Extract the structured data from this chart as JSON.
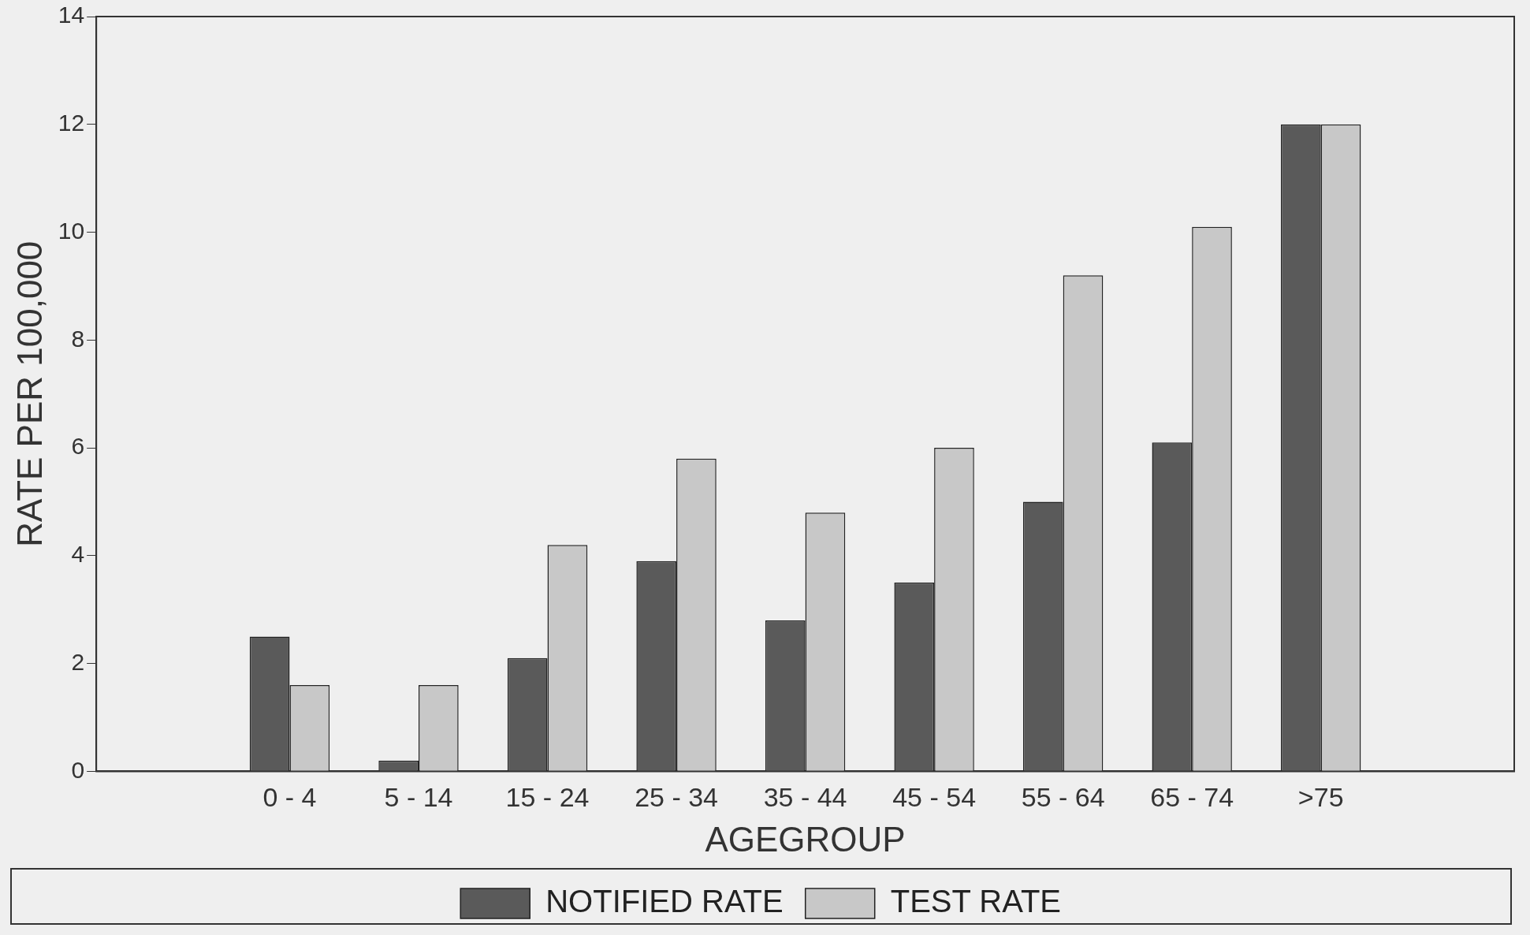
{
  "chart_data": {
    "type": "bar",
    "xlabel": "AGEGROUP",
    "ylabel": "RATE PER 100,000",
    "categories": [
      null,
      "0 - 4",
      "5 - 14",
      "15 - 24",
      "25 - 34",
      "35 - 44",
      "45 - 54",
      "55 - 64",
      "65 - 74",
      ">75",
      null
    ],
    "series": [
      {
        "name": "NOTIFIED RATE",
        "color": "#5a5a5a",
        "values": [
          null,
          2.5,
          0.2,
          2.1,
          3.9,
          2.8,
          3.5,
          5.0,
          6.1,
          12.0,
          null
        ]
      },
      {
        "name": "TEST RATE",
        "color": "#c8c8c8",
        "values": [
          null,
          1.6,
          1.6,
          4.2,
          5.8,
          4.8,
          6.0,
          9.2,
          10.1,
          12.0,
          null
        ]
      }
    ],
    "ylim": [
      0,
      14
    ],
    "yticks": [
      0,
      2,
      4,
      6,
      8,
      10,
      12,
      14
    ],
    "grid": false,
    "legend": "bottom"
  }
}
